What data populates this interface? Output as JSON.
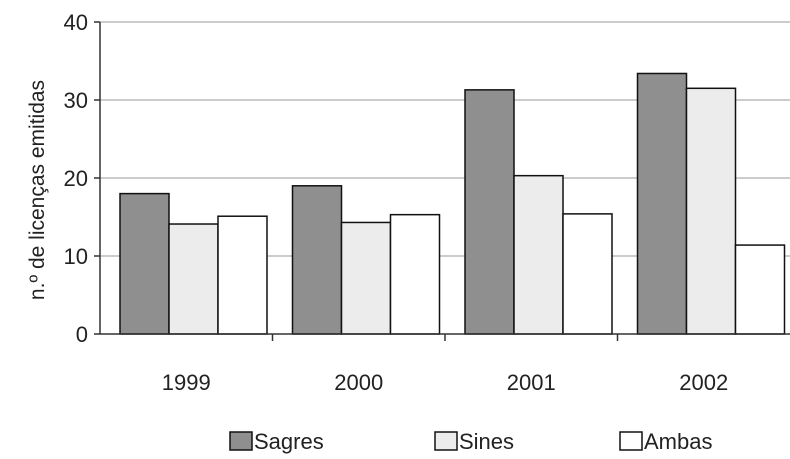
{
  "chart_data": {
    "type": "bar",
    "categories": [
      "1999",
      "2000",
      "2001",
      "2002"
    ],
    "series": [
      {
        "name": "Sagres",
        "values": [
          18,
          19,
          31.3,
          33.4
        ],
        "color": "#8f8f8f"
      },
      {
        "name": "Sines",
        "values": [
          14.1,
          14.3,
          20.3,
          31.5
        ],
        "color": "#ececec"
      },
      {
        "name": "Ambas",
        "values": [
          15.1,
          15.3,
          15.4,
          11.4
        ],
        "color": "#ffffff"
      }
    ],
    "title": "",
    "xlabel": "",
    "ylabel": "n.º de licenças emitidas",
    "ylim": [
      0,
      40
    ],
    "yticks": [
      "0",
      "10",
      "20",
      "30",
      "40"
    ],
    "grid": "horizontal",
    "legend_position": "bottom"
  }
}
